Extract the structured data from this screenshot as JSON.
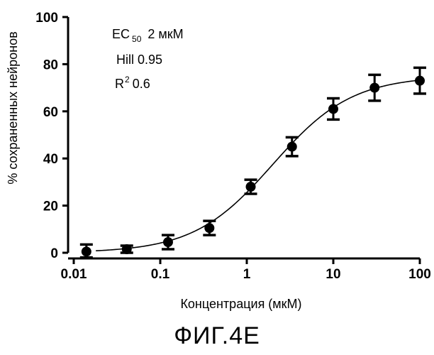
{
  "figure": {
    "caption": "ФИГ.4Е"
  },
  "chart_data": {
    "type": "scatter",
    "title": "",
    "xlabel": "Концентрация (мкМ)",
    "ylabel": "% сохраненных нейронов",
    "x_scale": "log",
    "xlim": [
      0.01,
      100
    ],
    "ylim": [
      0,
      100
    ],
    "x_ticks": [
      0.01,
      0.1,
      1,
      10,
      100
    ],
    "x_tick_labels": [
      "0.01",
      "0.1",
      "1",
      "10",
      "100"
    ],
    "y_ticks": [
      0,
      20,
      40,
      60,
      80,
      100
    ],
    "y_tick_labels": [
      "0",
      "20",
      "40",
      "60",
      "80",
      "100"
    ],
    "grid": false,
    "annotations": {
      "ec50_label": "EC",
      "ec50_sub": "50",
      "ec50_value": "2 мкМ",
      "hill": "Hill 0.95",
      "r2_label": "R",
      "r2_sup": "2",
      "r2_value": "0.6"
    },
    "series": [
      {
        "points": [
          {
            "x": 0.014,
            "y": 0.5,
            "err": 3.0
          },
          {
            "x": 0.041,
            "y": 1.5,
            "err": 1.5
          },
          {
            "x": 0.123,
            "y": 4.5,
            "err": 3.0
          },
          {
            "x": 0.37,
            "y": 10.5,
            "err": 3.0
          },
          {
            "x": 1.11,
            "y": 28.0,
            "err": 3.0
          },
          {
            "x": 3.33,
            "y": 45.0,
            "err": 4.0
          },
          {
            "x": 10,
            "y": 61.0,
            "err": 4.5
          },
          {
            "x": 30,
            "y": 70.0,
            "err": 5.5
          },
          {
            "x": 100,
            "y": 73.0,
            "err": 5.5
          }
        ],
        "fit_curve": {
          "model": "sigmoidal dose-response",
          "bottom": 0,
          "top": 75,
          "ec50": 2,
          "hill": 0.95,
          "x_range": [
            0.018,
            100
          ]
        }
      }
    ]
  }
}
